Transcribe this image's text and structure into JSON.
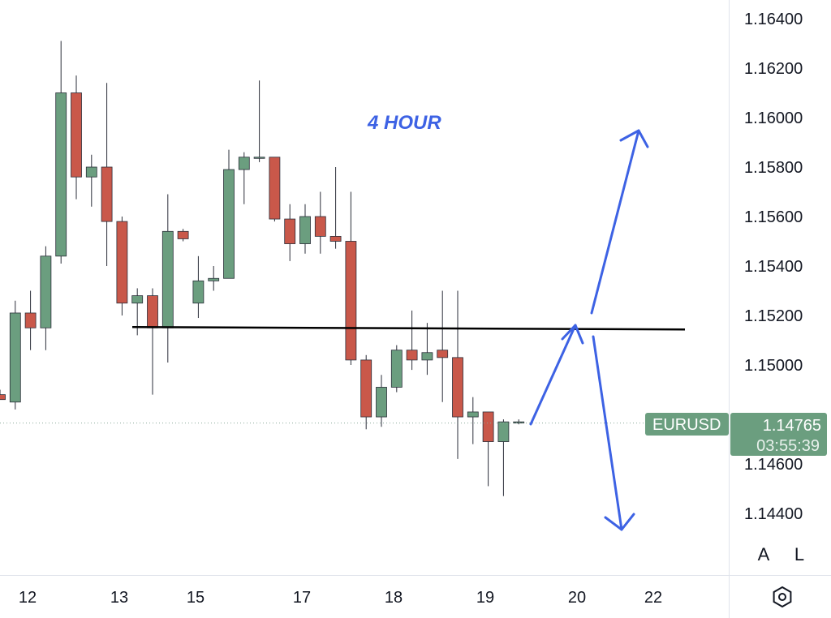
{
  "chart_data": {
    "type": "candlestick",
    "symbol": "EURUSD",
    "last_price": "1.14765",
    "countdown": "03:55:39",
    "annotation": "4 HOUR",
    "y_ticks": [
      "1.16400",
      "1.16200",
      "1.16000",
      "1.15800",
      "1.15600",
      "1.15400",
      "1.15200",
      "1.15000",
      "1.14600",
      "1.14400"
    ],
    "y_tick_values": [
      1.164,
      1.162,
      1.16,
      1.158,
      1.156,
      1.154,
      1.152,
      1.15,
      1.146,
      1.144
    ],
    "x_ticks": [
      "12",
      "13",
      "15",
      "17",
      "18",
      "19",
      "20",
      "22"
    ],
    "ylim": [
      1.1423,
      1.1655
    ],
    "horizontal_line": 1.1515,
    "candles": [
      {
        "o": 1.1488,
        "h": 1.149,
        "l": 1.1486,
        "c": 1.1486
      },
      {
        "o": 1.1485,
        "h": 1.1526,
        "l": 1.1482,
        "c": 1.1521
      },
      {
        "o": 1.1521,
        "h": 1.153,
        "l": 1.1506,
        "c": 1.1515
      },
      {
        "o": 1.1515,
        "h": 1.1548,
        "l": 1.1506,
        "c": 1.1544
      },
      {
        "o": 1.1544,
        "h": 1.1631,
        "l": 1.1541,
        "c": 1.161
      },
      {
        "o": 1.161,
        "h": 1.1617,
        "l": 1.1567,
        "c": 1.1576
      },
      {
        "o": 1.1576,
        "h": 1.1585,
        "l": 1.1564,
        "c": 1.158
      },
      {
        "o": 1.158,
        "h": 1.1614,
        "l": 1.154,
        "c": 1.1558
      },
      {
        "o": 1.1558,
        "h": 1.156,
        "l": 1.152,
        "c": 1.1525
      },
      {
        "o": 1.1525,
        "h": 1.1531,
        "l": 1.1512,
        "c": 1.1528
      },
      {
        "o": 1.1528,
        "h": 1.1531,
        "l": 1.1488,
        "c": 1.1515
      },
      {
        "o": 1.1515,
        "h": 1.1569,
        "l": 1.1501,
        "c": 1.1554
      },
      {
        "o": 1.1554,
        "h": 1.1555,
        "l": 1.155,
        "c": 1.1551
      },
      {
        "o": 1.1525,
        "h": 1.1544,
        "l": 1.1519,
        "c": 1.1534
      },
      {
        "o": 1.1534,
        "h": 1.154,
        "l": 1.153,
        "c": 1.1535
      },
      {
        "o": 1.1535,
        "h": 1.1587,
        "l": 1.1535,
        "c": 1.1579
      },
      {
        "o": 1.1579,
        "h": 1.1586,
        "l": 1.1565,
        "c": 1.1584
      },
      {
        "o": 1.1584,
        "h": 1.1615,
        "l": 1.1582,
        "c": 1.1584
      },
      {
        "o": 1.1584,
        "h": 1.1584,
        "l": 1.1558,
        "c": 1.1559
      },
      {
        "o": 1.1559,
        "h": 1.1565,
        "l": 1.1542,
        "c": 1.1549
      },
      {
        "o": 1.1549,
        "h": 1.1565,
        "l": 1.1545,
        "c": 1.156
      },
      {
        "o": 1.156,
        "h": 1.157,
        "l": 1.1545,
        "c": 1.1552
      },
      {
        "o": 1.1552,
        "h": 1.158,
        "l": 1.1547,
        "c": 1.155
      },
      {
        "o": 1.155,
        "h": 1.157,
        "l": 1.15,
        "c": 1.1502
      },
      {
        "o": 1.1502,
        "h": 1.1504,
        "l": 1.1474,
        "c": 1.1479
      },
      {
        "o": 1.1479,
        "h": 1.1496,
        "l": 1.1475,
        "c": 1.1491
      },
      {
        "o": 1.1491,
        "h": 1.1508,
        "l": 1.1489,
        "c": 1.1506
      },
      {
        "o": 1.1506,
        "h": 1.1522,
        "l": 1.1498,
        "c": 1.1502
      },
      {
        "o": 1.1502,
        "h": 1.1517,
        "l": 1.1496,
        "c": 1.1505
      },
      {
        "o": 1.1506,
        "h": 1.153,
        "l": 1.1485,
        "c": 1.1503
      },
      {
        "o": 1.1503,
        "h": 1.153,
        "l": 1.1462,
        "c": 1.1479
      },
      {
        "o": 1.1479,
        "h": 1.1487,
        "l": 1.1468,
        "c": 1.1481
      },
      {
        "o": 1.1481,
        "h": 1.1481,
        "l": 1.1451,
        "c": 1.1469
      },
      {
        "o": 1.1469,
        "h": 1.1478,
        "l": 1.1447,
        "c": 1.1477
      },
      {
        "o": 1.1477,
        "h": 1.1478,
        "l": 1.1476,
        "c": 1.1477
      }
    ]
  },
  "buttons": {
    "auto_label": "A",
    "log_label": "L"
  },
  "colors": {
    "up": "#6b9e7f",
    "down": "#c9584a",
    "annotation": "#3d62e4",
    "badge": "#6b9e7f"
  }
}
